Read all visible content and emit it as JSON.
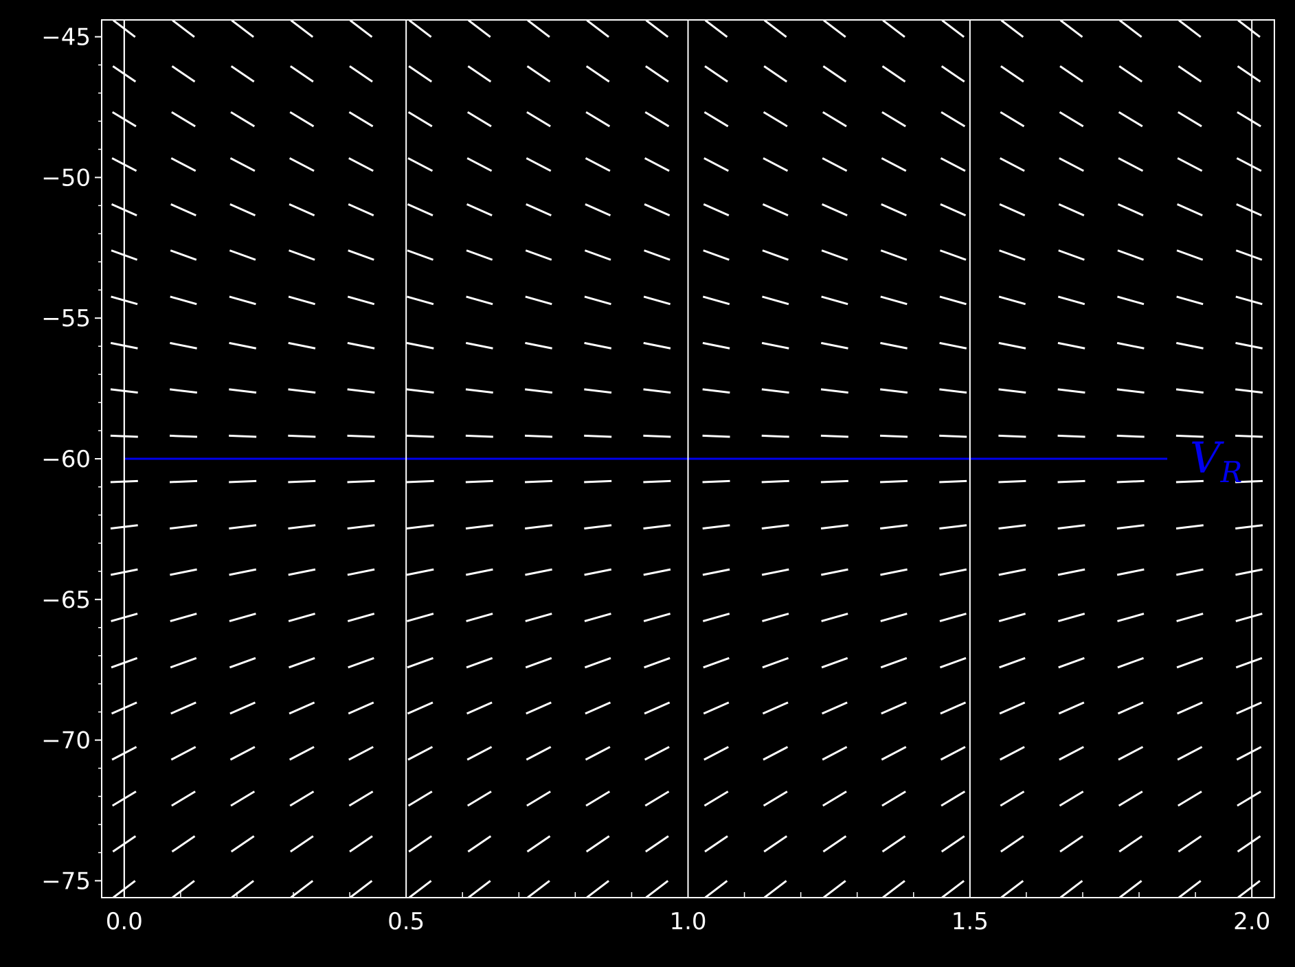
{
  "chart_data": {
    "type": "slope_field",
    "title": "",
    "xlabel": "",
    "ylabel": "",
    "xlim": [
      -0.04,
      2.04
    ],
    "ylim": [
      -75.6,
      -44.4
    ],
    "x_ticks": [
      0.0,
      0.5,
      1.0,
      1.5,
      2.0
    ],
    "x_tick_labels": [
      "0.0",
      "0.5",
      "1.0",
      "1.5",
      "2.0"
    ],
    "x_minor_step": 0.1,
    "y_ticks": [
      -75,
      -70,
      -65,
      -60,
      -55,
      -50,
      -45
    ],
    "y_tick_labels": [
      "−75",
      "−70",
      "−65",
      "−60",
      "−55",
      "−50",
      "−45"
    ],
    "y_minor_step": 1,
    "grid": false,
    "field": {
      "equation": "dV/dt = -(V - V_R)",
      "rest_value": -60,
      "x_start": 0.0,
      "x_step": 0.105,
      "x_count": 20,
      "y_start": -75.3,
      "y_step": 1.61,
      "y_count": 20,
      "color": "#ffffff"
    },
    "series": [
      {
        "name": "V_R",
        "x": [
          0.0,
          1.85
        ],
        "y": [
          -60,
          -60
        ],
        "color": "#0000ee"
      }
    ],
    "annotation": {
      "text_main": "V",
      "text_sub": "R",
      "x": 1.89,
      "y": -60,
      "color": "#0000ee"
    }
  }
}
